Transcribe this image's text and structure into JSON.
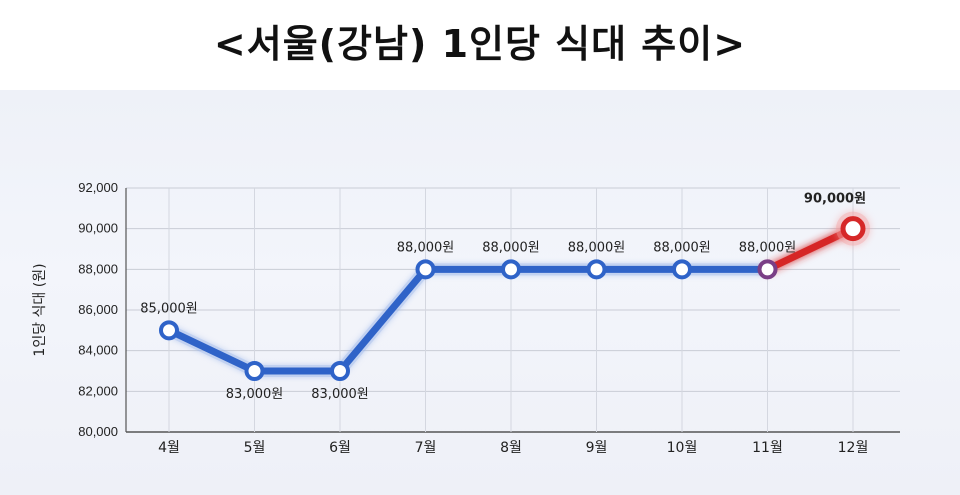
{
  "title": "<서울(강남) 1인당 식대 추이>",
  "chart_data": {
    "type": "line",
    "ylabel": "1인당 식대 (원)",
    "ylim": [
      80000,
      92000
    ],
    "yticks": [
      "80,000",
      "82,000",
      "84,000",
      "86,000",
      "88,000",
      "90,000",
      "92,000"
    ],
    "ytick_values": [
      80000,
      82000,
      84000,
      86000,
      88000,
      90000,
      92000
    ],
    "categories": [
      "4월",
      "5월",
      "6월",
      "7월",
      "8월",
      "9월",
      "10월",
      "11월",
      "12월"
    ],
    "values": [
      85000,
      83000,
      83000,
      88000,
      88000,
      88000,
      88000,
      88000,
      90000
    ],
    "labels": [
      "85,000원",
      "83,000원",
      "83,000원",
      "88,000원",
      "88,000원",
      "88,000원",
      "88,000원",
      "88,000원",
      "90,000원"
    ],
    "grid": true,
    "colors": {
      "line": "#2f63c8",
      "highlight": "#d62828",
      "highlight_label": "#9e1b1b"
    },
    "highlight_index": 8
  }
}
